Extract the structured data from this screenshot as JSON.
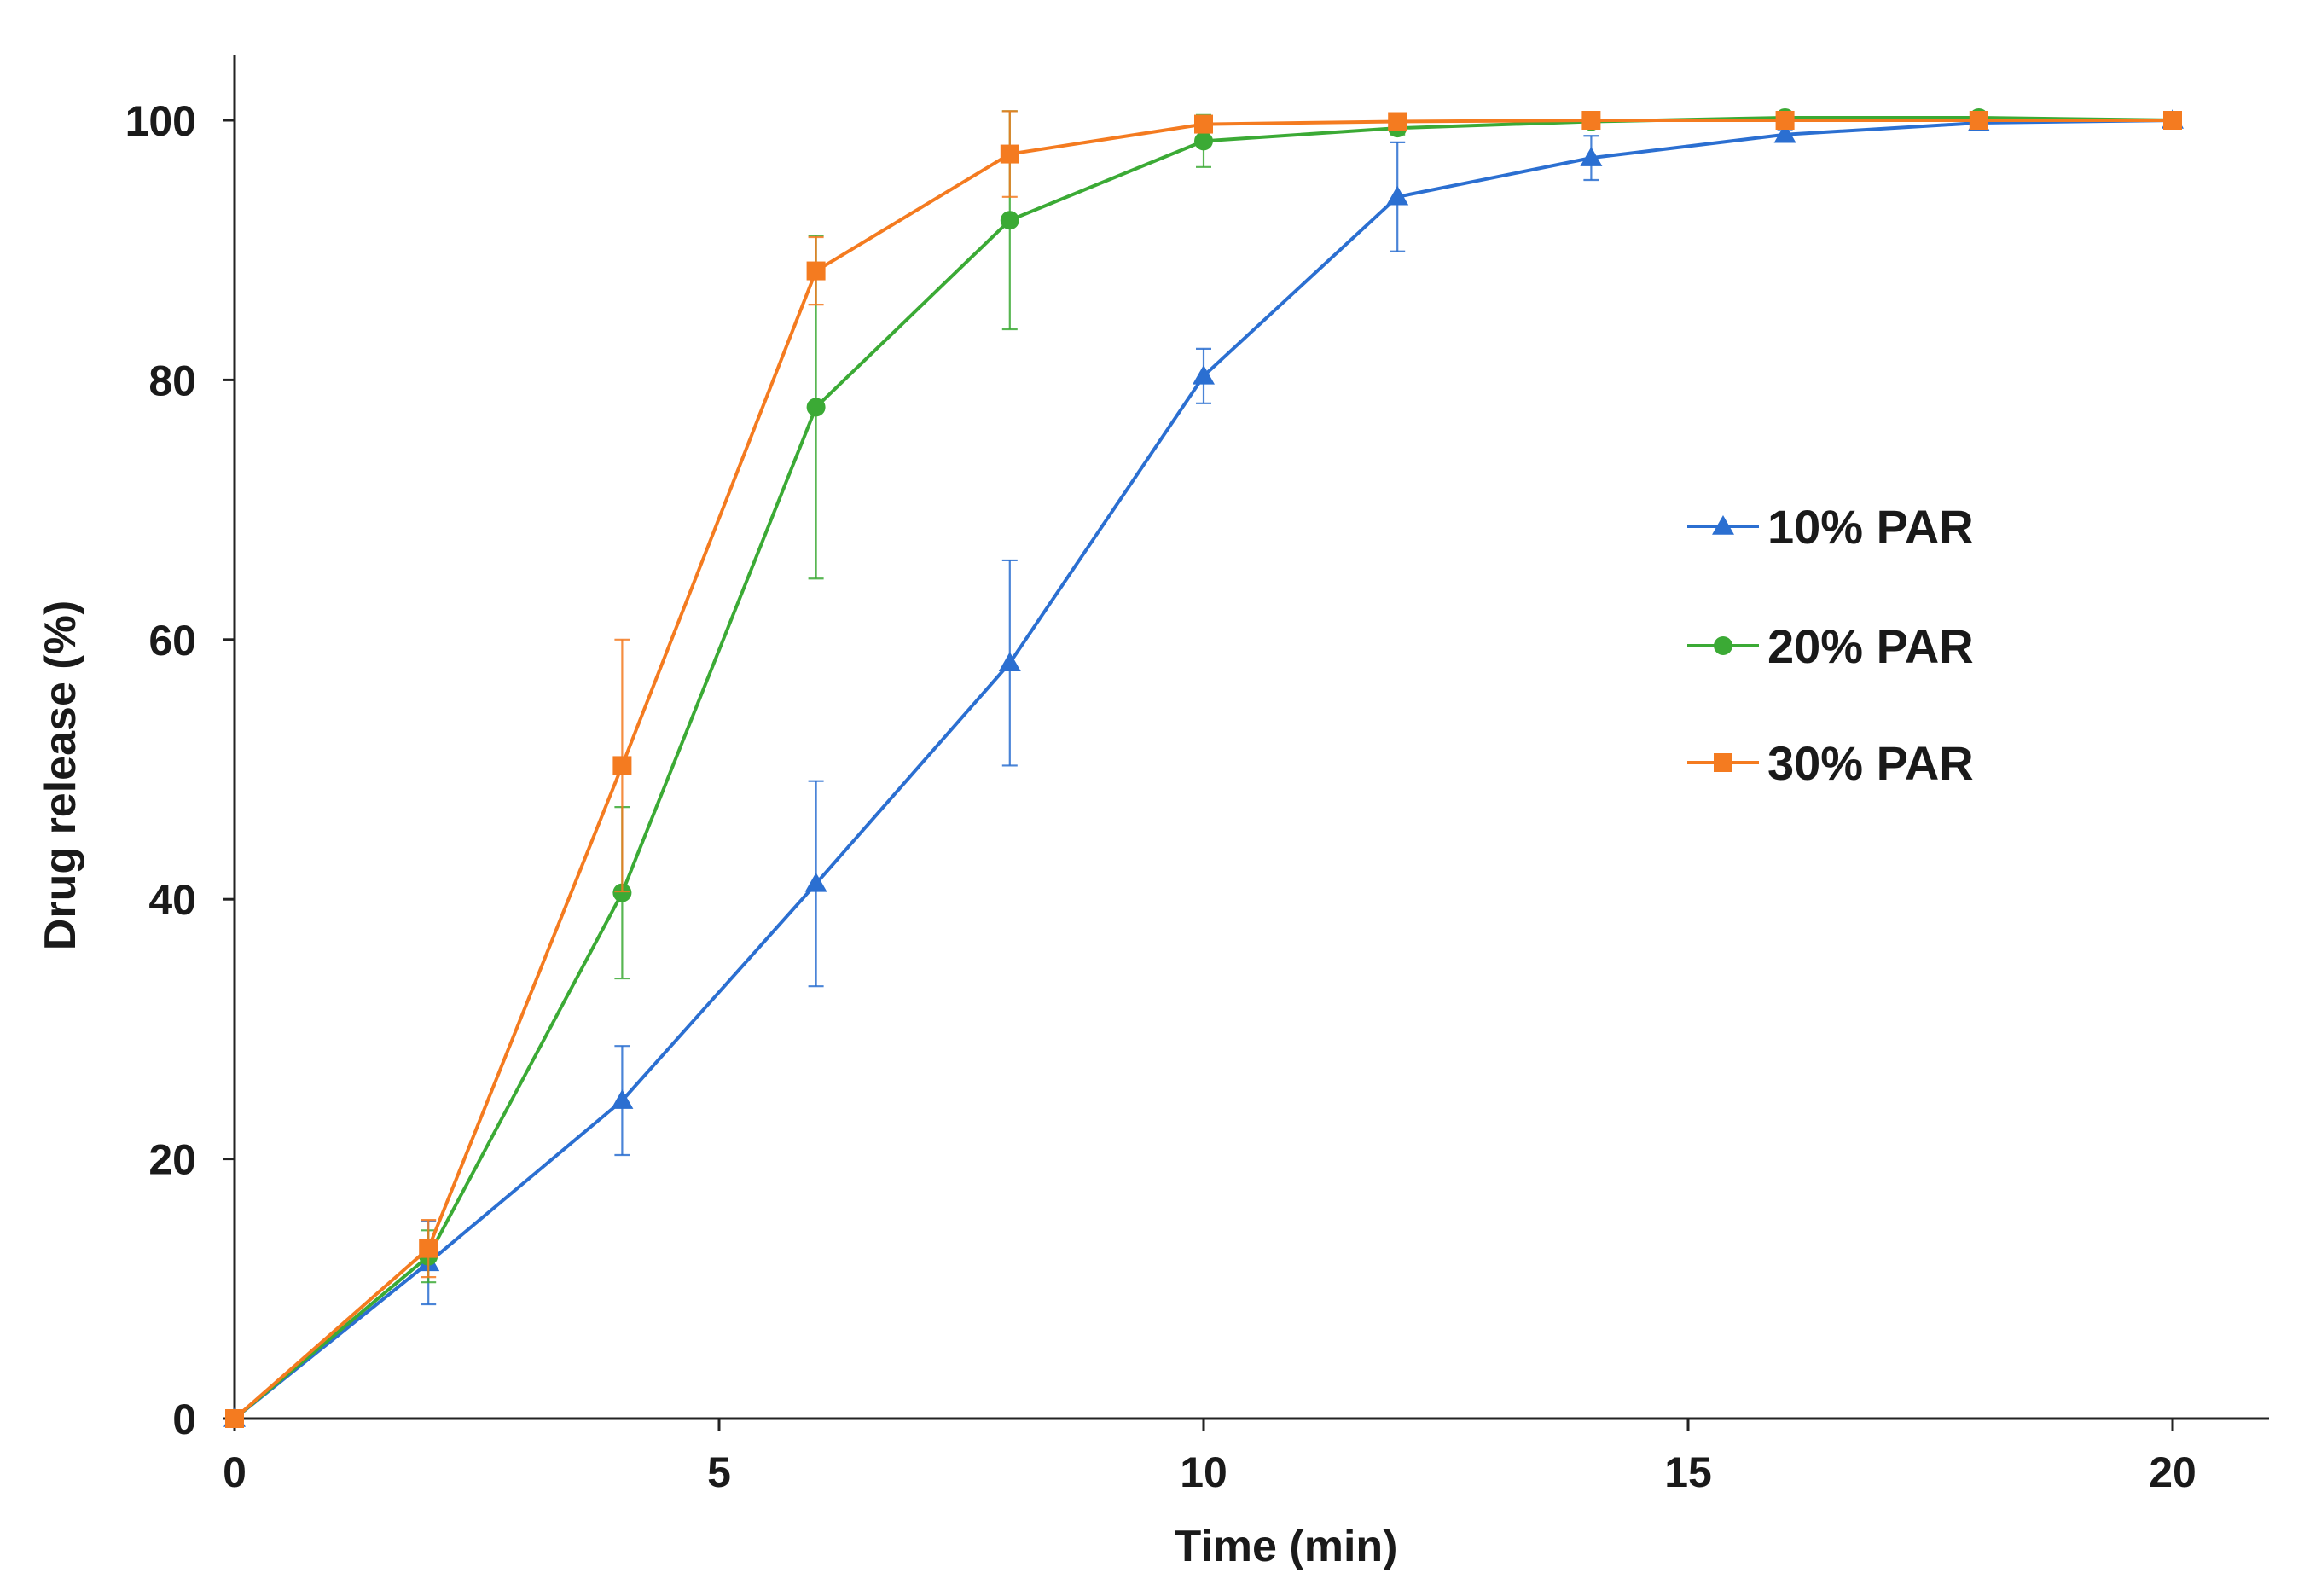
{
  "chart_data": {
    "type": "line",
    "title": "",
    "xlabel": "Time (min)",
    "ylabel": "Drug release (%)",
    "xlim": [
      0,
      21
    ],
    "ylim": [
      0,
      105
    ],
    "xticks": [
      0,
      5,
      10,
      15,
      20
    ],
    "yticks": [
      0,
      20,
      40,
      60,
      80,
      100
    ],
    "grid": false,
    "legend_position": "right-center",
    "x": [
      0,
      2,
      4,
      6,
      8,
      10,
      12,
      14,
      16,
      18,
      20
    ],
    "series": [
      {
        "name": "10% PAR",
        "color": "#2B6FD1",
        "marker": "triangle",
        "values": [
          0,
          12,
          24.5,
          41.2,
          58.2,
          80.3,
          94.1,
          97.1,
          98.9,
          99.8,
          100
        ],
        "errors": [
          0,
          3.2,
          4.2,
          7.9,
          7.9,
          2.1,
          4.2,
          1.7,
          0.4,
          0.3,
          0.2
        ]
      },
      {
        "name": "20% PAR",
        "color": "#3BAA35",
        "marker": "circle",
        "values": [
          0,
          12.5,
          40.5,
          77.9,
          92.3,
          98.4,
          99.4,
          99.9,
          100.2,
          100.2,
          100
        ],
        "errors": [
          0,
          2.0,
          6.6,
          13.2,
          8.4,
          2.0,
          0.5,
          0.3,
          0.3,
          0.2,
          0.1
        ]
      },
      {
        "name": "30% PAR",
        "color": "#F47B20",
        "marker": "square",
        "values": [
          0,
          13.1,
          50.3,
          88.4,
          97.4,
          99.7,
          99.9,
          100,
          100,
          100,
          100
        ],
        "errors": [
          0,
          2.2,
          9.7,
          2.6,
          3.3,
          0.3,
          0.2,
          0.1,
          0.1,
          0.1,
          0.1
        ]
      }
    ]
  }
}
